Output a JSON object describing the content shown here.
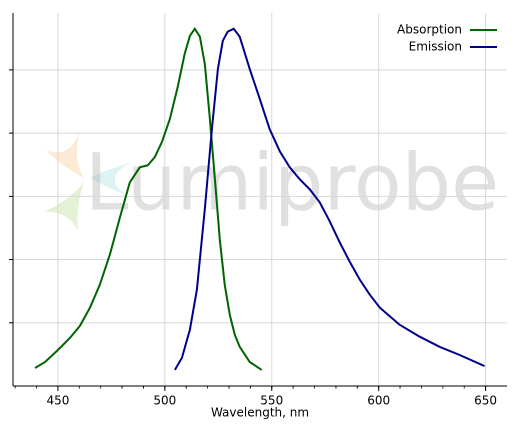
{
  "chart_data": {
    "type": "line",
    "watermark": "Lumiprobe",
    "xlabel": "Wavelength, nm",
    "xlim": [
      429,
      660
    ],
    "xticks": [
      450,
      500,
      550,
      600,
      650
    ],
    "ylim": [
      0,
      1.18
    ],
    "yticks": [
      0.2,
      0.4,
      0.6,
      0.8,
      1.0
    ],
    "ytick_labels": false,
    "grid": true,
    "legend": "upper right",
    "series": [
      {
        "name": "Absorption",
        "color": "#006400",
        "x": [
          439.3,
          444,
          450,
          455.6,
          460.3,
          465,
          469.6,
          474.3,
          479,
          483.6,
          488.3,
          492,
          495.3,
          498.6,
          502.3,
          506,
          509.3,
          511.7,
          514,
          516.4,
          518.7,
          521,
          523.4,
          525.7,
          528,
          530.4,
          532.7,
          535,
          539.7,
          545.3
        ],
        "values": [
          0.057,
          0.076,
          0.114,
          0.152,
          0.19,
          0.248,
          0.32,
          0.416,
          0.533,
          0.644,
          0.692,
          0.698,
          0.724,
          0.771,
          0.844,
          0.946,
          1.051,
          1.108,
          1.13,
          1.105,
          1.019,
          0.851,
          0.654,
          0.463,
          0.321,
          0.225,
          0.162,
          0.124,
          0.076,
          0.051
        ]
      },
      {
        "name": "Emission",
        "color": "#00008b",
        "x": [
          504.7,
          508,
          511.7,
          515,
          518.7,
          522,
          524.8,
          527.1,
          529.4,
          532.2,
          535,
          539.7,
          544.4,
          549,
          553.7,
          558.4,
          563.1,
          567.8,
          572.4,
          577.1,
          581.8,
          586.4,
          591.1,
          595.8,
          600.5,
          609.8,
          619.2,
          628.5,
          637.9,
          649.5
        ],
        "values": [
          0.051,
          0.089,
          0.178,
          0.305,
          0.559,
          0.813,
          1.003,
          1.092,
          1.121,
          1.13,
          1.105,
          1.003,
          0.908,
          0.813,
          0.743,
          0.692,
          0.654,
          0.622,
          0.581,
          0.521,
          0.454,
          0.394,
          0.337,
          0.289,
          0.248,
          0.194,
          0.156,
          0.124,
          0.098,
          0.063
        ]
      }
    ]
  }
}
